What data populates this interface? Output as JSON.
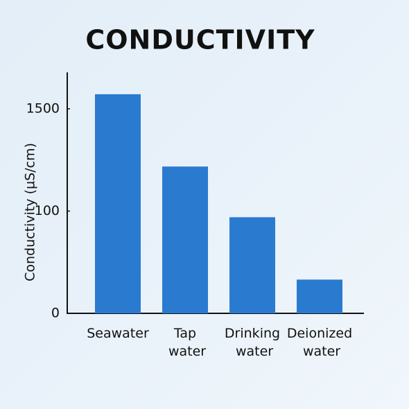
{
  "chart_data": {
    "type": "bar",
    "title": "CONDUCTIVITY",
    "y_label": "Conductivity (µS/cm)",
    "categories": [
      "Seawater",
      "Tap water",
      "Drinking water",
      "Deionized water"
    ],
    "values": [
      1700,
      710,
      94,
      33
    ],
    "color": "#2a7bd0",
    "ylim": [
      0,
      2000
    ],
    "yticks": [
      0,
      100,
      1500
    ],
    "grid": false
  }
}
